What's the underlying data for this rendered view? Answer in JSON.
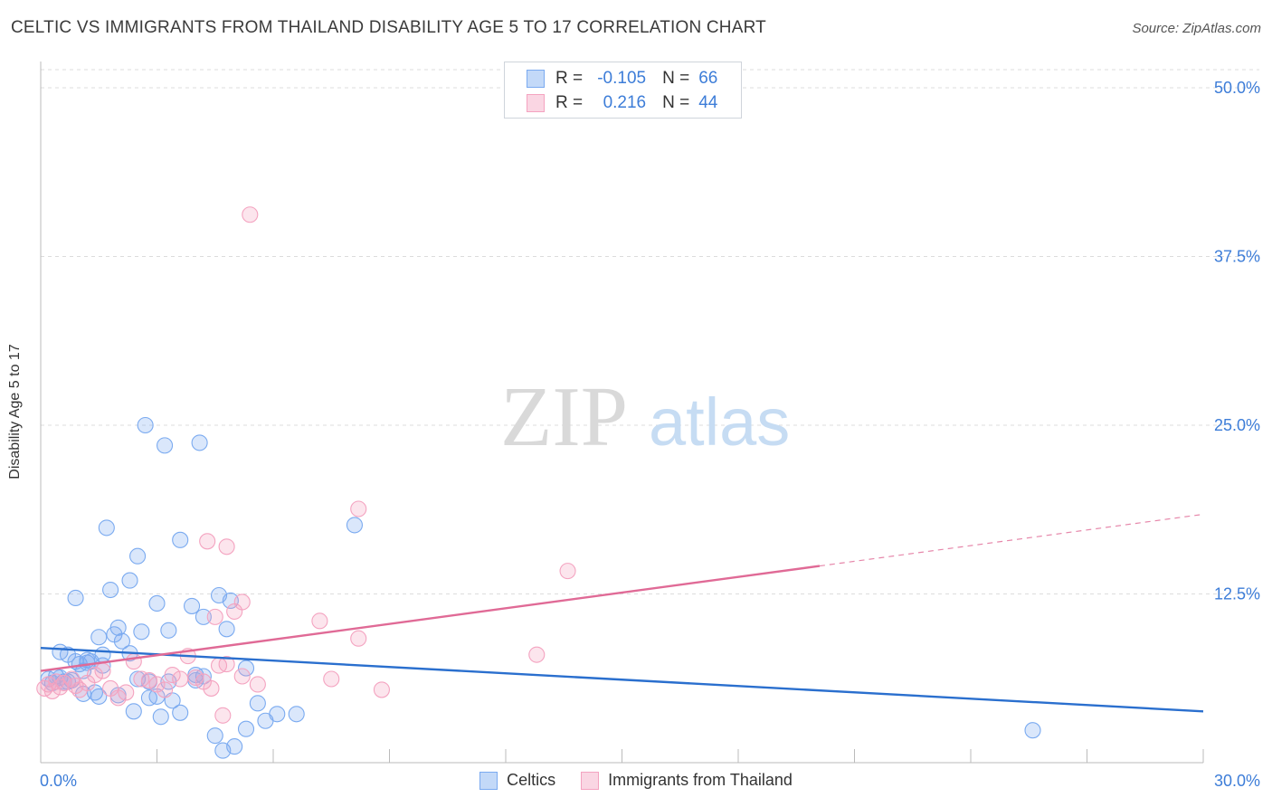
{
  "title": "CELTIC VS IMMIGRANTS FROM THAILAND DISABILITY AGE 5 TO 17 CORRELATION CHART",
  "source": "Source: ZipAtlas.com",
  "watermark": {
    "zip": "ZIP",
    "atlas": "atlas"
  },
  "correlation_box": {
    "rows": [
      {
        "r_label": "R =",
        "r_value": "-0.105",
        "n_label": "N =",
        "n_value": "66",
        "color": "#7aaaf0"
      },
      {
        "r_label": "R =",
        "r_value": "0.216",
        "n_label": "N =",
        "n_value": "44",
        "color": "#f4a3c0"
      }
    ]
  },
  "legend": [
    {
      "label": "Celtics",
      "color": "#7aaaf0"
    },
    {
      "label": "Immigrants from Thailand",
      "color": "#f4a3c0"
    }
  ],
  "chart_data": {
    "type": "scatter",
    "title": "CELTIC VS IMMIGRANTS FROM THAILAND DISABILITY AGE 5 TO 17 CORRELATION CHART",
    "xlabel": "",
    "ylabel": "Disability Age 5 to 17",
    "xlim": [
      0,
      30
    ],
    "ylim": [
      0,
      50
    ],
    "x_tick_labels": [
      {
        "value": 0,
        "label": "0.0%"
      },
      {
        "value": 30,
        "label": "30.0%"
      }
    ],
    "x_minor_ticks": [
      0,
      3,
      6,
      9,
      12,
      15,
      18,
      21,
      24,
      27,
      30
    ],
    "y_tick_labels": [
      {
        "value": 12.5,
        "label": "12.5%"
      },
      {
        "value": 25,
        "label": "25.0%"
      },
      {
        "value": 37.5,
        "label": "37.5%"
      },
      {
        "value": 50,
        "label": "50.0%"
      }
    ],
    "grid": true,
    "series": [
      {
        "name": "Celtics",
        "color": "#7aaaf0",
        "line_color": "#2a6fce",
        "trend": {
          "x0": 0,
          "y0": 8.5,
          "x1": 30,
          "y1": 3.8,
          "solid_until": 30
        },
        "points": [
          [
            0.2,
            6.2
          ],
          [
            0.3,
            5.9
          ],
          [
            0.4,
            6.4
          ],
          [
            0.5,
            8.2
          ],
          [
            0.6,
            6.0
          ],
          [
            0.7,
            8.0
          ],
          [
            0.8,
            6.1
          ],
          [
            0.9,
            7.5
          ],
          [
            1.0,
            7.3
          ],
          [
            1.1,
            6.8
          ],
          [
            1.2,
            7.4
          ],
          [
            1.3,
            7.5
          ],
          [
            0.9,
            12.2
          ],
          [
            1.5,
            9.3
          ],
          [
            1.6,
            8.0
          ],
          [
            1.7,
            17.4
          ],
          [
            1.9,
            9.5
          ],
          [
            2.0,
            10.0
          ],
          [
            2.1,
            9.0
          ],
          [
            2.3,
            13.5
          ],
          [
            1.8,
            12.8
          ],
          [
            2.5,
            15.3
          ],
          [
            2.6,
            9.7
          ],
          [
            2.7,
            25.0
          ],
          [
            3.0,
            11.8
          ],
          [
            3.2,
            23.5
          ],
          [
            3.3,
            9.8
          ],
          [
            3.6,
            16.5
          ],
          [
            3.9,
            11.6
          ],
          [
            4.0,
            6.5
          ],
          [
            4.1,
            23.7
          ],
          [
            4.2,
            10.8
          ],
          [
            4.6,
            12.4
          ],
          [
            4.9,
            12.0
          ],
          [
            4.8,
            9.9
          ],
          [
            5.3,
            7.0
          ],
          [
            5.6,
            4.4
          ],
          [
            5.8,
            3.1
          ],
          [
            6.1,
            3.6
          ],
          [
            6.6,
            3.6
          ],
          [
            8.1,
            17.6
          ],
          [
            1.1,
            5.1
          ],
          [
            1.5,
            4.9
          ],
          [
            2.0,
            5.0
          ],
          [
            2.4,
            3.8
          ],
          [
            2.8,
            4.8
          ],
          [
            3.0,
            4.9
          ],
          [
            3.1,
            3.4
          ],
          [
            3.4,
            4.6
          ],
          [
            3.6,
            3.7
          ],
          [
            4.0,
            6.1
          ],
          [
            4.5,
            2.0
          ],
          [
            4.7,
            0.9
          ],
          [
            5.3,
            2.5
          ],
          [
            5.0,
            1.2
          ],
          [
            4.2,
            6.4
          ],
          [
            2.5,
            6.2
          ],
          [
            1.4,
            5.2
          ],
          [
            0.7,
            6.0
          ],
          [
            2.8,
            6.0
          ],
          [
            25.6,
            2.4
          ],
          [
            1.2,
            7.6
          ],
          [
            2.3,
            8.1
          ],
          [
            1.6,
            7.2
          ],
          [
            3.3,
            6.0
          ],
          [
            0.5,
            6.3
          ]
        ]
      },
      {
        "name": "Immigrants from Thailand",
        "color": "#f4a3c0",
        "line_color": "#e06a96",
        "trend": {
          "x0": 0,
          "y0": 6.8,
          "x1": 30,
          "y1": 18.4,
          "solid_until": 20.1
        },
        "points": [
          [
            0.1,
            5.5
          ],
          [
            0.2,
            5.8
          ],
          [
            0.3,
            5.3
          ],
          [
            0.4,
            6.0
          ],
          [
            0.5,
            5.6
          ],
          [
            0.6,
            5.9
          ],
          [
            0.8,
            6.2
          ],
          [
            0.9,
            5.7
          ],
          [
            1.0,
            5.4
          ],
          [
            1.2,
            5.9
          ],
          [
            1.4,
            6.5
          ],
          [
            1.6,
            6.8
          ],
          [
            1.8,
            5.5
          ],
          [
            2.0,
            4.8
          ],
          [
            2.2,
            5.2
          ],
          [
            2.4,
            7.5
          ],
          [
            2.6,
            6.2
          ],
          [
            2.8,
            6.1
          ],
          [
            3.0,
            5.8
          ],
          [
            3.2,
            5.4
          ],
          [
            3.4,
            6.5
          ],
          [
            3.6,
            6.2
          ],
          [
            3.8,
            7.9
          ],
          [
            4.0,
            6.3
          ],
          [
            4.2,
            6.0
          ],
          [
            4.4,
            5.5
          ],
          [
            4.6,
            7.2
          ],
          [
            4.8,
            7.3
          ],
          [
            5.0,
            11.2
          ],
          [
            5.2,
            11.9
          ],
          [
            4.3,
            16.4
          ],
          [
            4.8,
            16.0
          ],
          [
            4.5,
            10.8
          ],
          [
            4.7,
            3.5
          ],
          [
            5.4,
            40.6
          ],
          [
            5.2,
            6.4
          ],
          [
            5.6,
            5.8
          ],
          [
            7.2,
            10.5
          ],
          [
            7.5,
            6.2
          ],
          [
            8.2,
            18.8
          ],
          [
            8.2,
            9.2
          ],
          [
            8.8,
            5.4
          ],
          [
            12.8,
            8.0
          ],
          [
            13.6,
            14.2
          ]
        ]
      }
    ]
  }
}
